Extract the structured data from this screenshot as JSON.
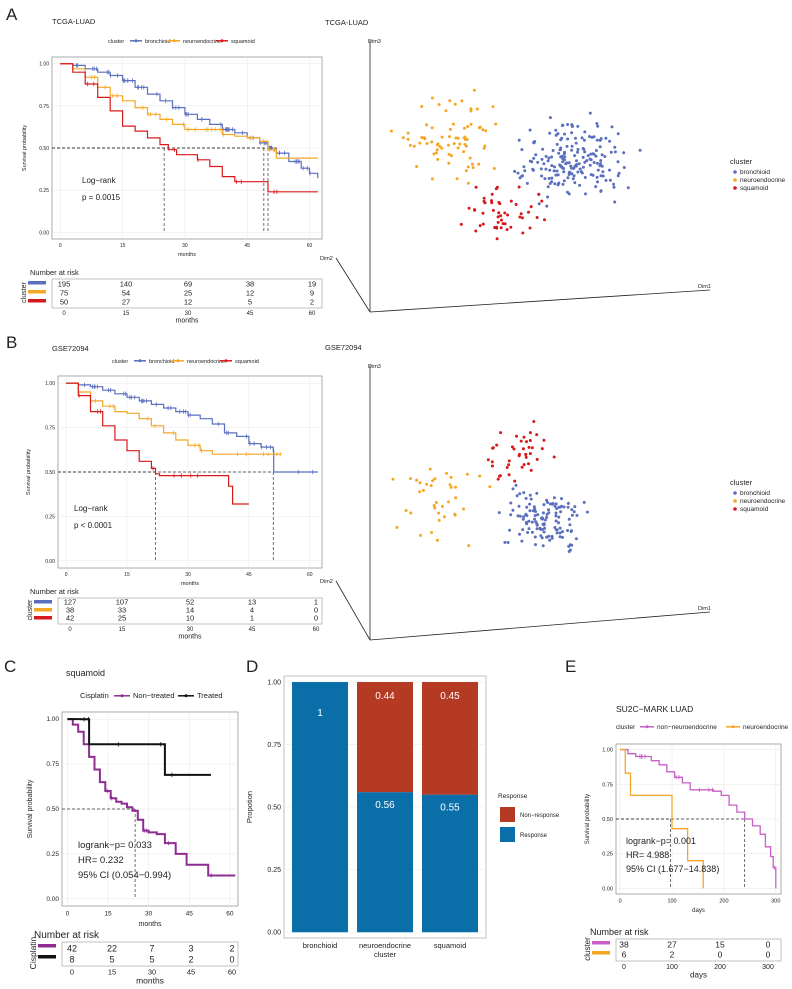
{
  "colors": {
    "bronchioid": "#5a6fbd",
    "neuroendocrine": "#f5a623",
    "squamoid": "#d7191c",
    "nontreated": "#8e2c93",
    "treated": "#111111",
    "response": "#0a6ea8",
    "nonresponse": "#b53a24",
    "nonneuro": "#c75fc6",
    "neuro_e": "#f5a623"
  },
  "panelA": {
    "letter": "A",
    "km": {
      "title": "TCGA-LUAD",
      "legend_title": "cluster",
      "legend_items": [
        "bronchioid",
        "neuroendocrine",
        "squamoid"
      ],
      "ylabel": "Survival probability",
      "xlabel": "months",
      "yticks": [
        "0.00",
        "0.25",
        "0.50",
        "0.75",
        "1.00"
      ],
      "xticks": [
        "0",
        "15",
        "30",
        "45",
        "60"
      ],
      "annotation": [
        "Log−rank",
        "p = 0.0015"
      ]
    },
    "risk": {
      "title": "Number at risk",
      "ylabel": "cluster",
      "rows": [
        [
          "195",
          "140",
          "69",
          "38",
          "19"
        ],
        [
          "75",
          "54",
          "25",
          "12",
          "9"
        ],
        [
          "50",
          "27",
          "12",
          "5",
          "2"
        ]
      ],
      "xticks": [
        "0",
        "15",
        "30",
        "45",
        "60"
      ],
      "xlabel": "months"
    },
    "scatter": {
      "title": "TCGA-LUAD",
      "dim1": "Dim1",
      "dim2": "Dim2",
      "dim3": "Dim3",
      "legend_title": "cluster",
      "legend_items": [
        "bronchioid",
        "neuroendocrine",
        "squamoid"
      ]
    }
  },
  "panelB": {
    "letter": "B",
    "km": {
      "title": "GSE72094",
      "legend_title": "cluster",
      "legend_items": [
        "bronchioid",
        "neuroendocrine",
        "squamoid"
      ],
      "ylabel": "Survival probability",
      "xlabel": "months",
      "yticks": [
        "0.00",
        "0.25",
        "0.50",
        "0.75",
        "1.00"
      ],
      "xticks": [
        "0",
        "15",
        "30",
        "45",
        "60"
      ],
      "annotation": [
        "Log−rank",
        "p < 0.0001"
      ]
    },
    "risk": {
      "title": "Number at risk",
      "ylabel": "cluster",
      "rows": [
        [
          "127",
          "107",
          "52",
          "13",
          "1"
        ],
        [
          "38",
          "33",
          "14",
          "4",
          "0"
        ],
        [
          "42",
          "25",
          "10",
          "1",
          "0"
        ]
      ],
      "xticks": [
        "0",
        "15",
        "30",
        "45",
        "60"
      ],
      "xlabel": "months"
    },
    "scatter": {
      "title": "GSE72094",
      "dim1": "Dim1",
      "dim2": "Dim2",
      "dim3": "Dim3",
      "legend_title": "cluster",
      "legend_items": [
        "bronchioid",
        "neuroendocrine",
        "squamoid"
      ]
    }
  },
  "panelC": {
    "letter": "C",
    "title": "squamoid",
    "legend_title": "Cisplatin",
    "legend_items": [
      "Non−treated",
      "Treated"
    ],
    "ylabel": "Survival probability",
    "xlabel": "months",
    "yticks": [
      "0.00",
      "0.25",
      "0.50",
      "0.75",
      "1.00"
    ],
    "xticks": [
      "0",
      "15",
      "30",
      "45",
      "60"
    ],
    "annotation": [
      "logrank−p= 0.033",
      "HR= 0.232",
      "95% CI (0.054−0.994)"
    ],
    "risk": {
      "title": "Number at risk",
      "ylabel": "Cisplatin",
      "rows": [
        [
          "42",
          "22",
          "7",
          "3",
          "2"
        ],
        [
          "8",
          "5",
          "5",
          "2",
          "0"
        ]
      ],
      "xticks": [
        "0",
        "15",
        "30",
        "45",
        "60"
      ],
      "xlabel": "months"
    }
  },
  "panelD": {
    "letter": "D",
    "ylabel": "Propotion",
    "xlabel": "cluster",
    "yticks": [
      "0.00",
      "0.25",
      "0.50",
      "0.75",
      "1.00"
    ],
    "legend_title": "Response",
    "legend_items": [
      "Non−response",
      "Response"
    ]
  },
  "panelE": {
    "letter": "E",
    "title": "SU2C−MARK LUAD",
    "legend_title": "cluster",
    "legend_items": [
      "non−neuroendocrine",
      "neuroendocrine"
    ],
    "ylabel": "Survival probability",
    "xlabel": "days",
    "yticks": [
      "0.00",
      "0.25",
      "0.50",
      "0.75",
      "1.00"
    ],
    "xticks": [
      "0",
      "100",
      "200",
      "300"
    ],
    "annotation": [
      "logrank−p= 0.001",
      "HR= 4.988",
      "95% CI (1.677−14.838)"
    ],
    "risk": {
      "title": "Number at risk",
      "ylabel": "cluster",
      "rows": [
        [
          "38",
          "27",
          "15",
          "0"
        ],
        [
          "6",
          "2",
          "0",
          "0"
        ]
      ],
      "xticks": [
        "0",
        "100",
        "200",
        "300"
      ],
      "xlabel": "days"
    }
  },
  "chart_data": [
    {
      "type": "line",
      "title": "TCGA-LUAD",
      "xlabel": "months",
      "ylabel": "Survival probability",
      "xlim": [
        0,
        62
      ],
      "ylim": [
        0,
        1
      ],
      "series": [
        {
          "name": "bronchioid",
          "x": [
            0,
            3,
            6,
            9,
            12,
            15,
            18,
            21,
            24,
            27,
            30,
            33,
            36,
            39,
            42,
            45,
            48,
            50,
            52,
            55,
            58,
            60,
            62
          ],
          "y": [
            1,
            0.99,
            0.97,
            0.95,
            0.93,
            0.9,
            0.86,
            0.82,
            0.78,
            0.74,
            0.7,
            0.67,
            0.64,
            0.61,
            0.59,
            0.56,
            0.53,
            0.5,
            0.47,
            0.42,
            0.38,
            0.35,
            0.32
          ]
        },
        {
          "name": "neuroendocrine",
          "x": [
            0,
            3,
            6,
            9,
            12,
            15,
            18,
            21,
            24,
            27,
            30,
            33,
            36,
            39,
            42,
            45,
            48,
            50,
            52,
            62
          ],
          "y": [
            1,
            0.97,
            0.92,
            0.86,
            0.81,
            0.78,
            0.74,
            0.7,
            0.67,
            0.64,
            0.61,
            0.61,
            0.61,
            0.58,
            0.57,
            0.56,
            0.54,
            0.49,
            0.44,
            0.44
          ]
        },
        {
          "name": "squamoid",
          "x": [
            0,
            3,
            6,
            9,
            12,
            15,
            18,
            21,
            24,
            26,
            28,
            30,
            33,
            36,
            39,
            42,
            45,
            48,
            50,
            55,
            62
          ],
          "y": [
            1,
            0.95,
            0.88,
            0.8,
            0.72,
            0.63,
            0.6,
            0.56,
            0.52,
            0.49,
            0.46,
            0.46,
            0.43,
            0.39,
            0.33,
            0.3,
            0.3,
            0.3,
            0.24,
            0.24,
            0.24
          ]
        }
      ],
      "median_markers": [
        {
          "name": "squamoid",
          "x": 25,
          "y": 0.5
        },
        {
          "name": "neuroendocrine",
          "x": 49,
          "y": 0.5
        },
        {
          "name": "bronchioid",
          "x": 50,
          "y": 0.5
        }
      ]
    },
    {
      "type": "scatter",
      "title": "TCGA-LUAD",
      "axes": [
        "Dim1",
        "Dim2",
        "Dim3"
      ],
      "series": [
        {
          "name": "bronchioid",
          "approx_count": 195
        },
        {
          "name": "neuroendocrine",
          "approx_count": 75
        },
        {
          "name": "squamoid",
          "approx_count": 50
        }
      ]
    },
    {
      "type": "line",
      "title": "GSE72094",
      "xlabel": "months",
      "ylabel": "Survival probability",
      "xlim": [
        0,
        62
      ],
      "ylim": [
        0,
        1
      ],
      "series": [
        {
          "name": "bronchioid",
          "x": [
            0,
            3,
            6,
            9,
            12,
            15,
            18,
            21,
            24,
            27,
            30,
            33,
            36,
            39,
            42,
            45,
            48,
            51,
            51.1,
            62
          ],
          "y": [
            1,
            0.99,
            0.98,
            0.96,
            0.94,
            0.92,
            0.9,
            0.88,
            0.86,
            0.84,
            0.82,
            0.8,
            0.77,
            0.72,
            0.7,
            0.66,
            0.64,
            0.62,
            0.5,
            0.5
          ]
        },
        {
          "name": "neuroendocrine",
          "x": [
            0,
            3,
            6,
            9,
            12,
            15,
            18,
            21,
            24,
            27,
            30,
            33,
            36,
            39,
            42,
            45,
            48,
            51,
            53
          ],
          "y": [
            1,
            0.95,
            0.9,
            0.87,
            0.84,
            0.83,
            0.8,
            0.76,
            0.72,
            0.68,
            0.65,
            0.62,
            0.6,
            0.6,
            0.6,
            0.6,
            0.6,
            0.6,
            0.6
          ]
        },
        {
          "name": "squamoid",
          "x": [
            0,
            3,
            6,
            9,
            12,
            15,
            18,
            21,
            22,
            23,
            27,
            30,
            36,
            38,
            40,
            41,
            45
          ],
          "y": [
            1,
            0.93,
            0.84,
            0.76,
            0.68,
            0.62,
            0.56,
            0.52,
            0.49,
            0.48,
            0.48,
            0.48,
            0.48,
            0.48,
            0.42,
            0.32,
            0.32
          ]
        }
      ],
      "median_markers": [
        {
          "name": "squamoid",
          "x": 22,
          "y": 0.5
        },
        {
          "name": "bronchioid",
          "x": 51,
          "y": 0.5
        }
      ]
    },
    {
      "type": "scatter",
      "title": "GSE72094",
      "axes": [
        "Dim1",
        "Dim2",
        "Dim3"
      ],
      "series": [
        {
          "name": "bronchioid",
          "approx_count": 127
        },
        {
          "name": "neuroendocrine",
          "approx_count": 38
        },
        {
          "name": "squamoid",
          "approx_count": 42
        }
      ]
    },
    {
      "type": "line",
      "title": "squamoid",
      "xlabel": "months",
      "ylabel": "Survival probability",
      "xlim": [
        0,
        62
      ],
      "ylim": [
        0,
        1
      ],
      "series": [
        {
          "name": "Non−treated",
          "x": [
            0,
            2,
            4,
            6,
            8,
            10,
            12,
            14,
            16,
            18,
            20,
            22,
            24,
            26,
            28,
            30,
            33,
            36,
            40,
            44,
            48,
            52,
            56,
            62
          ],
          "y": [
            1,
            0.97,
            0.93,
            0.86,
            0.79,
            0.72,
            0.65,
            0.6,
            0.56,
            0.54,
            0.53,
            0.51,
            0.49,
            0.44,
            0.38,
            0.37,
            0.36,
            0.31,
            0.25,
            0.19,
            0.19,
            0.13,
            0.13,
            0.13
          ]
        },
        {
          "name": "Treated",
          "x": [
            0,
            5,
            6,
            8,
            10,
            12,
            15,
            20,
            25,
            30,
            35,
            36,
            40,
            45,
            53
          ],
          "y": [
            1,
            1,
            1,
            0.86,
            0.86,
            0.86,
            0.86,
            0.86,
            0.86,
            0.86,
            0.86,
            0.69,
            0.69,
            0.69,
            0.69
          ]
        }
      ],
      "median_markers": [
        {
          "name": "Non−treated",
          "x": 25,
          "y": 0.5
        }
      ]
    },
    {
      "type": "bar",
      "stacked": true,
      "xlabel": "cluster",
      "ylabel": "Propotion",
      "ylim": [
        0,
        1
      ],
      "categories": [
        "bronchioid",
        "neuroendocrine",
        "squamoid"
      ],
      "series": [
        {
          "name": "Response",
          "values": [
            1,
            0.56,
            0.55
          ]
        },
        {
          "name": "Non−response",
          "values": [
            0,
            0.44,
            0.45
          ]
        }
      ],
      "labels": {
        "Response": [
          "1",
          "0.56",
          "0.55"
        ],
        "Non−response": [
          "",
          "0.44",
          "0.45"
        ]
      }
    },
    {
      "type": "line",
      "title": "SU2C−MARK LUAD",
      "xlabel": "days",
      "ylabel": "Survival probability",
      "xlim": [
        0,
        300
      ],
      "ylim": [
        0,
        1
      ],
      "series": [
        {
          "name": "non−neuroendocrine",
          "x": [
            0,
            15,
            30,
            45,
            60,
            75,
            90,
            105,
            120,
            135,
            150,
            165,
            180,
            195,
            210,
            225,
            240,
            255,
            270,
            280,
            290,
            295,
            300
          ],
          "y": [
            1,
            0.97,
            0.95,
            0.95,
            0.92,
            0.89,
            0.84,
            0.8,
            0.76,
            0.71,
            0.71,
            0.71,
            0.7,
            0.67,
            0.6,
            0.55,
            0.5,
            0.45,
            0.39,
            0.3,
            0.23,
            0.15,
            0
          ]
        },
        {
          "name": "neuroendocrine",
          "x": [
            0,
            10,
            20,
            60,
            95,
            100,
            110,
            130,
            150,
            160
          ],
          "y": [
            1,
            0.83,
            0.67,
            0.67,
            0.67,
            0.43,
            0.43,
            0.2,
            0.2,
            0
          ]
        }
      ],
      "median_markers": [
        {
          "name": "neuroendocrine",
          "x": 97,
          "y": 0.5
        },
        {
          "name": "non−neuroendocrine",
          "x": 240,
          "y": 0.5
        }
      ]
    }
  ]
}
